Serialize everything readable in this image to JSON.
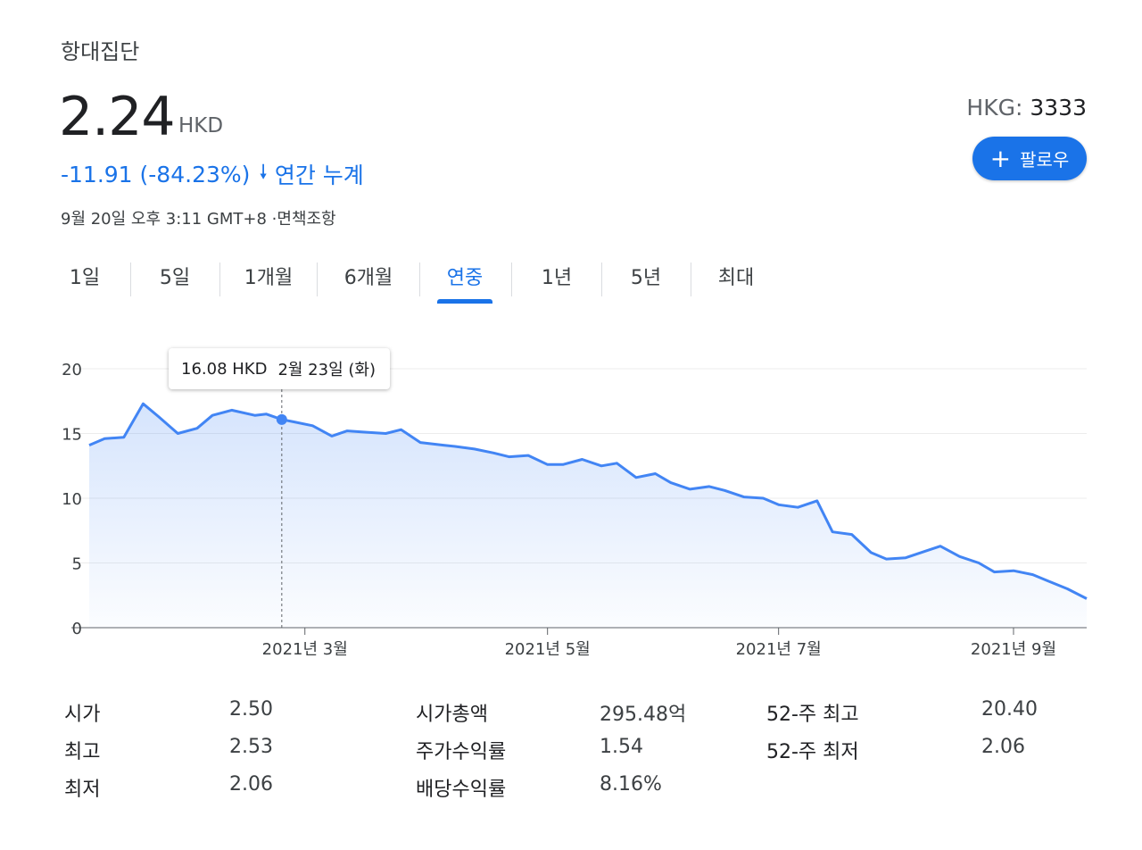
{
  "header": {
    "company": "항대집단",
    "price": "2.24",
    "currency": "HKD",
    "change": "-11.91 (-84.23%)",
    "change_period": "연간 누계",
    "timestamp": "9월 20일 오후 3:11 GMT+8",
    "disclaimer": "·면책조항",
    "exchange_label": "HKG:",
    "ticker": "3333",
    "follow_label": "팔로우",
    "accent_color": "#1a73e8"
  },
  "tabs": [
    {
      "label": "1일",
      "active": false
    },
    {
      "label": "5일",
      "active": false
    },
    {
      "label": "1개월",
      "active": false
    },
    {
      "label": "6개월",
      "active": false
    },
    {
      "label": "연중",
      "active": true
    },
    {
      "label": "1년",
      "active": false
    },
    {
      "label": "5년",
      "active": false
    },
    {
      "label": "최대",
      "active": false
    }
  ],
  "tooltip": {
    "value": "16.08 HKD",
    "date": "2월 23일 (화)"
  },
  "chart_data": {
    "type": "area",
    "title": "",
    "xlabel": "",
    "ylabel": "",
    "ylim": [
      0,
      20
    ],
    "y_ticks": [
      0,
      5,
      10,
      15,
      20
    ],
    "x_tick_labels": [
      "2021년 3월",
      "2021년 5월",
      "2021년 7월",
      "2021년 9월"
    ],
    "grid": true,
    "line_color": "#4285f4",
    "x": [
      "2021-01-04",
      "2021-01-08",
      "2021-01-13",
      "2021-01-18",
      "2021-01-22",
      "2021-01-27",
      "2021-02-01",
      "2021-02-05",
      "2021-02-10",
      "2021-02-16",
      "2021-02-19",
      "2021-02-23",
      "2021-02-26",
      "2021-03-03",
      "2021-03-08",
      "2021-03-12",
      "2021-03-17",
      "2021-03-22",
      "2021-03-26",
      "2021-03-31",
      "2021-04-06",
      "2021-04-09",
      "2021-04-14",
      "2021-04-19",
      "2021-04-23",
      "2021-04-28",
      "2021-05-03",
      "2021-05-07",
      "2021-05-12",
      "2021-05-17",
      "2021-05-21",
      "2021-05-26",
      "2021-05-31",
      "2021-06-04",
      "2021-06-09",
      "2021-06-14",
      "2021-06-18",
      "2021-06-23",
      "2021-06-28",
      "2021-07-02",
      "2021-07-07",
      "2021-07-12",
      "2021-07-16",
      "2021-07-21",
      "2021-07-26",
      "2021-07-30",
      "2021-08-04",
      "2021-08-09",
      "2021-08-13",
      "2021-08-18",
      "2021-08-23",
      "2021-08-27",
      "2021-09-01",
      "2021-09-06",
      "2021-09-10",
      "2021-09-15",
      "2021-09-20"
    ],
    "values": [
      14.1,
      14.6,
      14.7,
      17.3,
      16.3,
      15.0,
      15.4,
      16.4,
      16.8,
      16.4,
      16.5,
      16.08,
      15.9,
      15.6,
      14.8,
      15.2,
      15.1,
      15.0,
      15.3,
      14.3,
      14.1,
      14.0,
      13.8,
      13.5,
      13.2,
      13.3,
      12.6,
      12.6,
      13.0,
      12.5,
      12.7,
      11.6,
      11.9,
      11.2,
      10.7,
      10.9,
      10.6,
      10.1,
      10.0,
      9.5,
      9.3,
      9.8,
      7.4,
      7.2,
      5.8,
      5.3,
      5.4,
      5.9,
      6.3,
      5.5,
      5.0,
      4.3,
      4.4,
      4.1,
      3.6,
      3.0,
      2.24
    ],
    "highlight_point": {
      "x": "2021-02-23",
      "y": 16.08
    }
  },
  "stats": [
    {
      "label": "시가",
      "value": "2.50"
    },
    {
      "label": "최고",
      "value": "2.53"
    },
    {
      "label": "최저",
      "value": "2.06"
    },
    {
      "label": "시가총액",
      "value": "295.48억"
    },
    {
      "label": "주가수익률",
      "value": "1.54"
    },
    {
      "label": "배당수익률",
      "value": "8.16%"
    },
    {
      "label": "52-주 최고",
      "value": "20.40"
    },
    {
      "label": "52-주 최저",
      "value": "2.06"
    }
  ]
}
